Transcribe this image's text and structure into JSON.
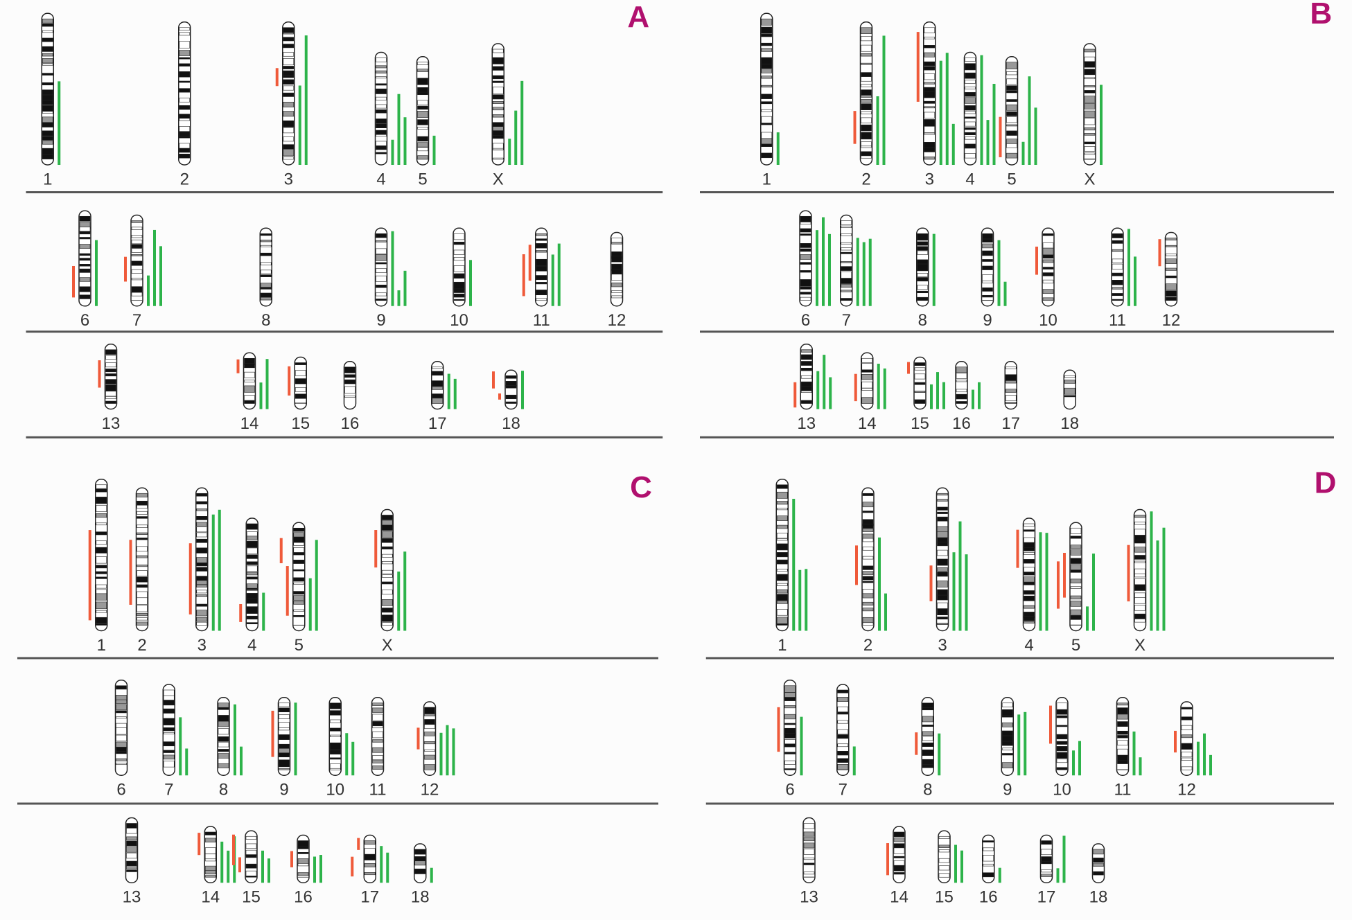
{
  "panels": [
    {
      "label": "A",
      "rows": [
        [
          "1",
          "2",
          "3",
          "4",
          "5",
          "X"
        ],
        [
          "6",
          "7",
          "8",
          "9",
          "10",
          "11",
          "12"
        ],
        [
          "13",
          "14",
          "15",
          "16",
          "17",
          "18"
        ]
      ]
    },
    {
      "label": "B",
      "rows": [
        [
          "1",
          "2",
          "3",
          "4",
          "5",
          "X"
        ],
        [
          "6",
          "7",
          "8",
          "9",
          "10",
          "11",
          "12"
        ],
        [
          "13",
          "14",
          "15",
          "16",
          "17",
          "18"
        ]
      ]
    },
    {
      "label": "C",
      "rows": [
        [
          "1",
          "2",
          "3",
          "4",
          "5",
          "X"
        ],
        [
          "6",
          "7",
          "8",
          "9",
          "10",
          "11",
          "12"
        ],
        [
          "13",
          "14",
          "15",
          "16",
          "17",
          "18"
        ]
      ]
    },
    {
      "label": "D",
      "rows": [
        [
          "1",
          "2",
          "3",
          "4",
          "5",
          "X"
        ],
        [
          "6",
          "7",
          "8",
          "9",
          "10",
          "11",
          "12"
        ],
        [
          "13",
          "14",
          "15",
          "16",
          "17",
          "18"
        ]
      ]
    }
  ]
}
